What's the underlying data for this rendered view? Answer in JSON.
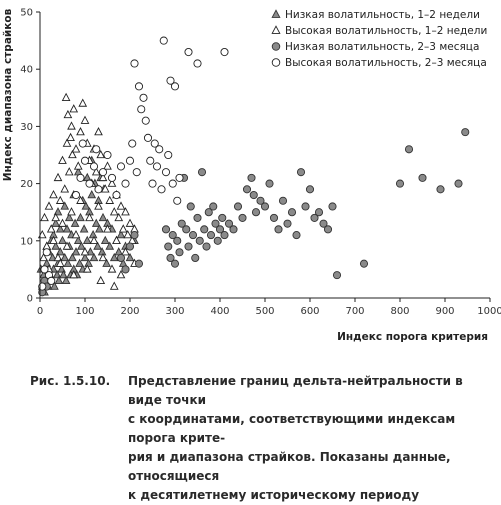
{
  "chart_data": {
    "type": "scatter",
    "xlabel": "Индекс порога критерия",
    "ylabel": "Индекс диапазона страйков",
    "xlim": [
      0,
      1000
    ],
    "ylim": [
      0,
      50
    ],
    "xticks": [
      0,
      100,
      200,
      300,
      400,
      500,
      600,
      700,
      800,
      900,
      1000
    ],
    "yticks": [
      0,
      10,
      20,
      30,
      40,
      50
    ],
    "grid": false,
    "legend_position": "top-right",
    "series": [
      {
        "name": "Низкая волатильность, 1–2 недели",
        "marker": "filled-triangle",
        "color": "#8a8a8a",
        "points": [
          [
            2,
            5
          ],
          [
            5,
            2
          ],
          [
            8,
            4
          ],
          [
            10,
            1
          ],
          [
            12,
            3
          ],
          [
            15,
            6
          ],
          [
            18,
            2
          ],
          [
            20,
            8
          ],
          [
            22,
            4
          ],
          [
            25,
            3
          ],
          [
            28,
            7
          ],
          [
            30,
            5
          ],
          [
            32,
            2
          ],
          [
            35,
            9
          ],
          [
            38,
            4
          ],
          [
            40,
            6
          ],
          [
            42,
            3
          ],
          [
            45,
            8
          ],
          [
            48,
            5
          ],
          [
            50,
            10
          ],
          [
            52,
            4
          ],
          [
            55,
            7
          ],
          [
            58,
            3
          ],
          [
            60,
            12
          ],
          [
            62,
            6
          ],
          [
            65,
            9
          ],
          [
            68,
            4
          ],
          [
            70,
            11
          ],
          [
            72,
            7
          ],
          [
            75,
            5
          ],
          [
            78,
            13
          ],
          [
            80,
            8
          ],
          [
            82,
            4
          ],
          [
            85,
            10
          ],
          [
            88,
            6
          ],
          [
            90,
            14
          ],
          [
            92,
            9
          ],
          [
            95,
            5
          ],
          [
            98,
            12
          ],
          [
            100,
            7
          ],
          [
            102,
            16
          ],
          [
            105,
            10
          ],
          [
            108,
            6
          ],
          [
            110,
            15
          ],
          [
            112,
            8
          ],
          [
            115,
            18
          ],
          [
            118,
            11
          ],
          [
            120,
            7
          ],
          [
            122,
            20
          ],
          [
            125,
            13
          ],
          [
            128,
            9
          ],
          [
            130,
            17
          ],
          [
            132,
            12
          ],
          [
            135,
            21
          ],
          [
            138,
            8
          ],
          [
            140,
            14
          ],
          [
            142,
            19
          ],
          [
            145,
            10
          ],
          [
            148,
            6
          ],
          [
            150,
            13
          ],
          [
            155,
            9
          ],
          [
            160,
            12
          ],
          [
            165,
            7
          ],
          [
            170,
            10
          ],
          [
            175,
            8
          ],
          [
            180,
            11
          ],
          [
            185,
            6
          ],
          [
            190,
            9
          ],
          [
            200,
            7
          ],
          [
            210,
            10
          ],
          [
            45,
            12
          ],
          [
            55,
            16
          ],
          [
            65,
            14
          ],
          [
            75,
            18
          ],
          [
            85,
            22
          ],
          [
            95,
            17
          ],
          [
            105,
            21
          ],
          [
            115,
            24
          ],
          [
            25,
            10
          ],
          [
            35,
            13
          ],
          [
            15,
            9
          ],
          [
            30,
            11
          ],
          [
            40,
            15
          ]
        ]
      },
      {
        "name": "Высокая волатильность, 1–2 недели",
        "marker": "open-triangle",
        "color": "#222222",
        "points": [
          [
            5,
            11
          ],
          [
            10,
            14
          ],
          [
            15,
            9
          ],
          [
            20,
            16
          ],
          [
            25,
            12
          ],
          [
            30,
            18
          ],
          [
            35,
            14
          ],
          [
            40,
            21
          ],
          [
            45,
            17
          ],
          [
            50,
            24
          ],
          [
            55,
            19
          ],
          [
            60,
            27
          ],
          [
            65,
            22
          ],
          [
            70,
            30
          ],
          [
            72,
            25
          ],
          [
            75,
            33
          ],
          [
            58,
            35
          ],
          [
            62,
            32
          ],
          [
            68,
            28
          ],
          [
            80,
            26
          ],
          [
            85,
            23
          ],
          [
            90,
            29
          ],
          [
            95,
            34
          ],
          [
            100,
            31
          ],
          [
            105,
            27
          ],
          [
            110,
            24
          ],
          [
            115,
            20
          ],
          [
            120,
            26
          ],
          [
            125,
            22
          ],
          [
            130,
            29
          ],
          [
            135,
            25
          ],
          [
            140,
            21
          ],
          [
            145,
            19
          ],
          [
            150,
            23
          ],
          [
            155,
            17
          ],
          [
            160,
            20
          ],
          [
            165,
            15
          ],
          [
            170,
            18
          ],
          [
            175,
            14
          ],
          [
            180,
            16
          ],
          [
            185,
            12
          ],
          [
            190,
            15
          ],
          [
            195,
            11
          ],
          [
            200,
            13
          ],
          [
            205,
            10
          ],
          [
            210,
            12
          ],
          [
            30,
            10
          ],
          [
            50,
            13
          ],
          [
            70,
            15
          ],
          [
            90,
            17
          ],
          [
            110,
            14
          ],
          [
            130,
            16
          ],
          [
            150,
            12
          ],
          [
            170,
            10
          ],
          [
            190,
            8
          ],
          [
            210,
            6
          ],
          [
            40,
            7
          ],
          [
            60,
            9
          ],
          [
            80,
            11
          ],
          [
            100,
            8
          ],
          [
            120,
            10
          ],
          [
            140,
            7
          ],
          [
            160,
            5
          ],
          [
            180,
            4
          ],
          [
            20,
            5
          ],
          [
            45,
            6
          ],
          [
            75,
            4
          ],
          [
            105,
            5
          ],
          [
            135,
            3
          ],
          [
            165,
            2
          ],
          [
            8,
            7
          ]
        ]
      },
      {
        "name": "Низкая волатильность, 2–3 месяца",
        "marker": "filled-circle",
        "color": "#8a8a8a",
        "points": [
          [
            5,
            1
          ],
          [
            10,
            3
          ],
          [
            15,
            2
          ],
          [
            280,
            12
          ],
          [
            285,
            9
          ],
          [
            290,
            7
          ],
          [
            295,
            11
          ],
          [
            300,
            6
          ],
          [
            305,
            10
          ],
          [
            310,
            8
          ],
          [
            315,
            13
          ],
          [
            320,
            21
          ],
          [
            325,
            12
          ],
          [
            330,
            9
          ],
          [
            335,
            16
          ],
          [
            340,
            11
          ],
          [
            345,
            7
          ],
          [
            350,
            14
          ],
          [
            355,
            10
          ],
          [
            360,
            22
          ],
          [
            365,
            12
          ],
          [
            370,
            9
          ],
          [
            375,
            15
          ],
          [
            380,
            11
          ],
          [
            385,
            16
          ],
          [
            390,
            13
          ],
          [
            395,
            10
          ],
          [
            400,
            12
          ],
          [
            405,
            14
          ],
          [
            410,
            11
          ],
          [
            420,
            13
          ],
          [
            430,
            12
          ],
          [
            440,
            16
          ],
          [
            450,
            14
          ],
          [
            460,
            19
          ],
          [
            470,
            21
          ],
          [
            475,
            18
          ],
          [
            480,
            15
          ],
          [
            490,
            17
          ],
          [
            500,
            16
          ],
          [
            510,
            20
          ],
          [
            520,
            14
          ],
          [
            530,
            12
          ],
          [
            540,
            17
          ],
          [
            550,
            13
          ],
          [
            560,
            15
          ],
          [
            570,
            11
          ],
          [
            580,
            22
          ],
          [
            590,
            16
          ],
          [
            600,
            19
          ],
          [
            610,
            14
          ],
          [
            620,
            15
          ],
          [
            630,
            13
          ],
          [
            640,
            12
          ],
          [
            650,
            16
          ],
          [
            660,
            4
          ],
          [
            720,
            6
          ],
          [
            800,
            20
          ],
          [
            820,
            26
          ],
          [
            850,
            21
          ],
          [
            890,
            19
          ],
          [
            930,
            20
          ],
          [
            945,
            29
          ],
          [
            180,
            7
          ],
          [
            190,
            5
          ],
          [
            200,
            9
          ],
          [
            210,
            11
          ],
          [
            220,
            6
          ]
        ]
      },
      {
        "name": "Высокая волатильность, 2–3 месяца",
        "marker": "open-circle",
        "color": "#222222",
        "points": [
          [
            5,
            2
          ],
          [
            10,
            5
          ],
          [
            15,
            8
          ],
          [
            20,
            4
          ],
          [
            25,
            3
          ],
          [
            210,
            41
          ],
          [
            220,
            37
          ],
          [
            225,
            33
          ],
          [
            230,
            35
          ],
          [
            235,
            31
          ],
          [
            240,
            28
          ],
          [
            245,
            24
          ],
          [
            250,
            20
          ],
          [
            255,
            27
          ],
          [
            260,
            23
          ],
          [
            265,
            26
          ],
          [
            270,
            19
          ],
          [
            275,
            45
          ],
          [
            280,
            22
          ],
          [
            285,
            25
          ],
          [
            290,
            38
          ],
          [
            295,
            20
          ],
          [
            300,
            37
          ],
          [
            305,
            17
          ],
          [
            310,
            21
          ],
          [
            330,
            43
          ],
          [
            350,
            41
          ],
          [
            410,
            43
          ],
          [
            80,
            18
          ],
          [
            90,
            21
          ],
          [
            100,
            24
          ],
          [
            110,
            20
          ],
          [
            120,
            23
          ],
          [
            130,
            19
          ],
          [
            140,
            22
          ],
          [
            150,
            25
          ],
          [
            160,
            21
          ],
          [
            170,
            18
          ],
          [
            180,
            23
          ],
          [
            190,
            20
          ],
          [
            200,
            24
          ],
          [
            205,
            27
          ],
          [
            215,
            22
          ],
          [
            95,
            27
          ],
          [
            125,
            26
          ]
        ]
      }
    ]
  },
  "caption": {
    "label": "Рис. 1.5.10.",
    "text_lines": [
      "Представление границ дельта-нейтральности в виде точки",
      "с координатами, соответствующими индексам порога крите-",
      "рия и диапазона страйков. Показаны данные, относящиеся",
      "к десятилетнему историческому периоду"
    ]
  }
}
